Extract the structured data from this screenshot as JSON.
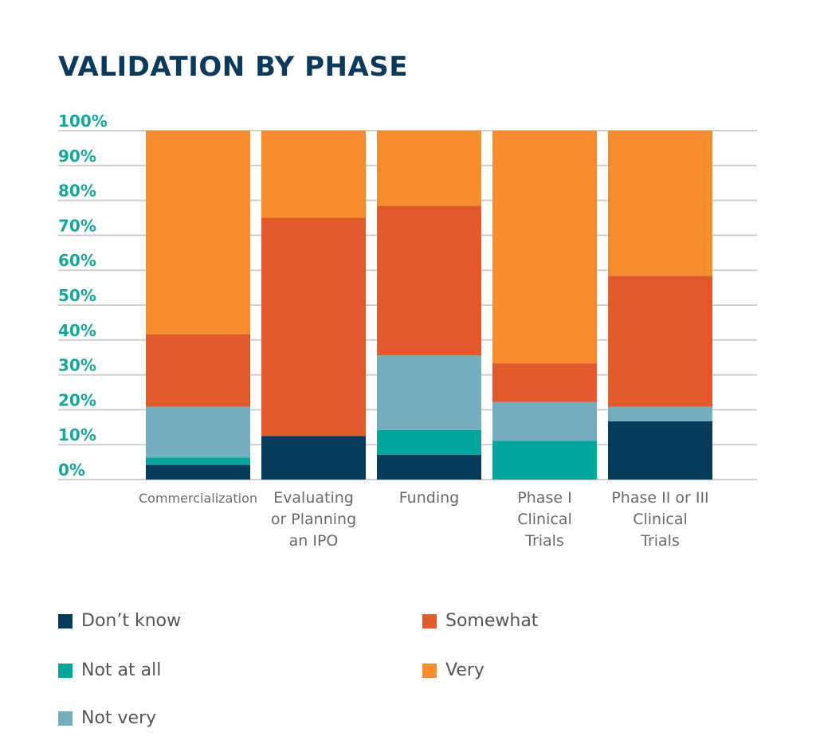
{
  "chart_data": {
    "type": "bar",
    "stacked": true,
    "title": "VALIDATION BY PHASE",
    "xlabel": "",
    "ylabel": "",
    "ylim": [
      0,
      100
    ],
    "y_ticks": [
      "0%",
      "10%",
      "20%",
      "30%",
      "40%",
      "50%",
      "60%",
      "70%",
      "80%",
      "90%",
      "100%"
    ],
    "y_tick_values": [
      0,
      10,
      20,
      30,
      40,
      50,
      60,
      70,
      80,
      90,
      100
    ],
    "grid": true,
    "legend_position": "bottom",
    "categories": [
      "Commercialization",
      "Evaluating or Planning an IPO",
      "Funding",
      "Phase I Clinical Trials",
      "Phase II or III Clinical Trials"
    ],
    "category_label_lines": [
      [
        "Commercialization"
      ],
      [
        "Evaluating",
        "or Planning",
        "an IPO"
      ],
      [
        "Funding"
      ],
      [
        "Phase I",
        "Clinical",
        "Trials"
      ],
      [
        "Phase II or III",
        "Clinical",
        "Trials"
      ]
    ],
    "series": [
      {
        "name": "Don’t know",
        "color": "#073b5c",
        "values": [
          4.2,
          12.5,
          7.1,
          0.0,
          16.7
        ]
      },
      {
        "name": "Not at all",
        "color": "#00a69c",
        "values": [
          2.1,
          0.0,
          7.1,
          11.1,
          0.0
        ]
      },
      {
        "name": "Not very",
        "color": "#74adbd",
        "values": [
          14.6,
          0.0,
          21.4,
          11.1,
          4.2
        ]
      },
      {
        "name": "Somewhat",
        "color": "#e05a2b",
        "values": [
          20.8,
          62.5,
          42.9,
          11.1,
          37.5
        ]
      },
      {
        "name": "Very",
        "color": "#f68d2e",
        "values": [
          58.3,
          25.0,
          21.4,
          66.7,
          41.6
        ]
      }
    ]
  }
}
